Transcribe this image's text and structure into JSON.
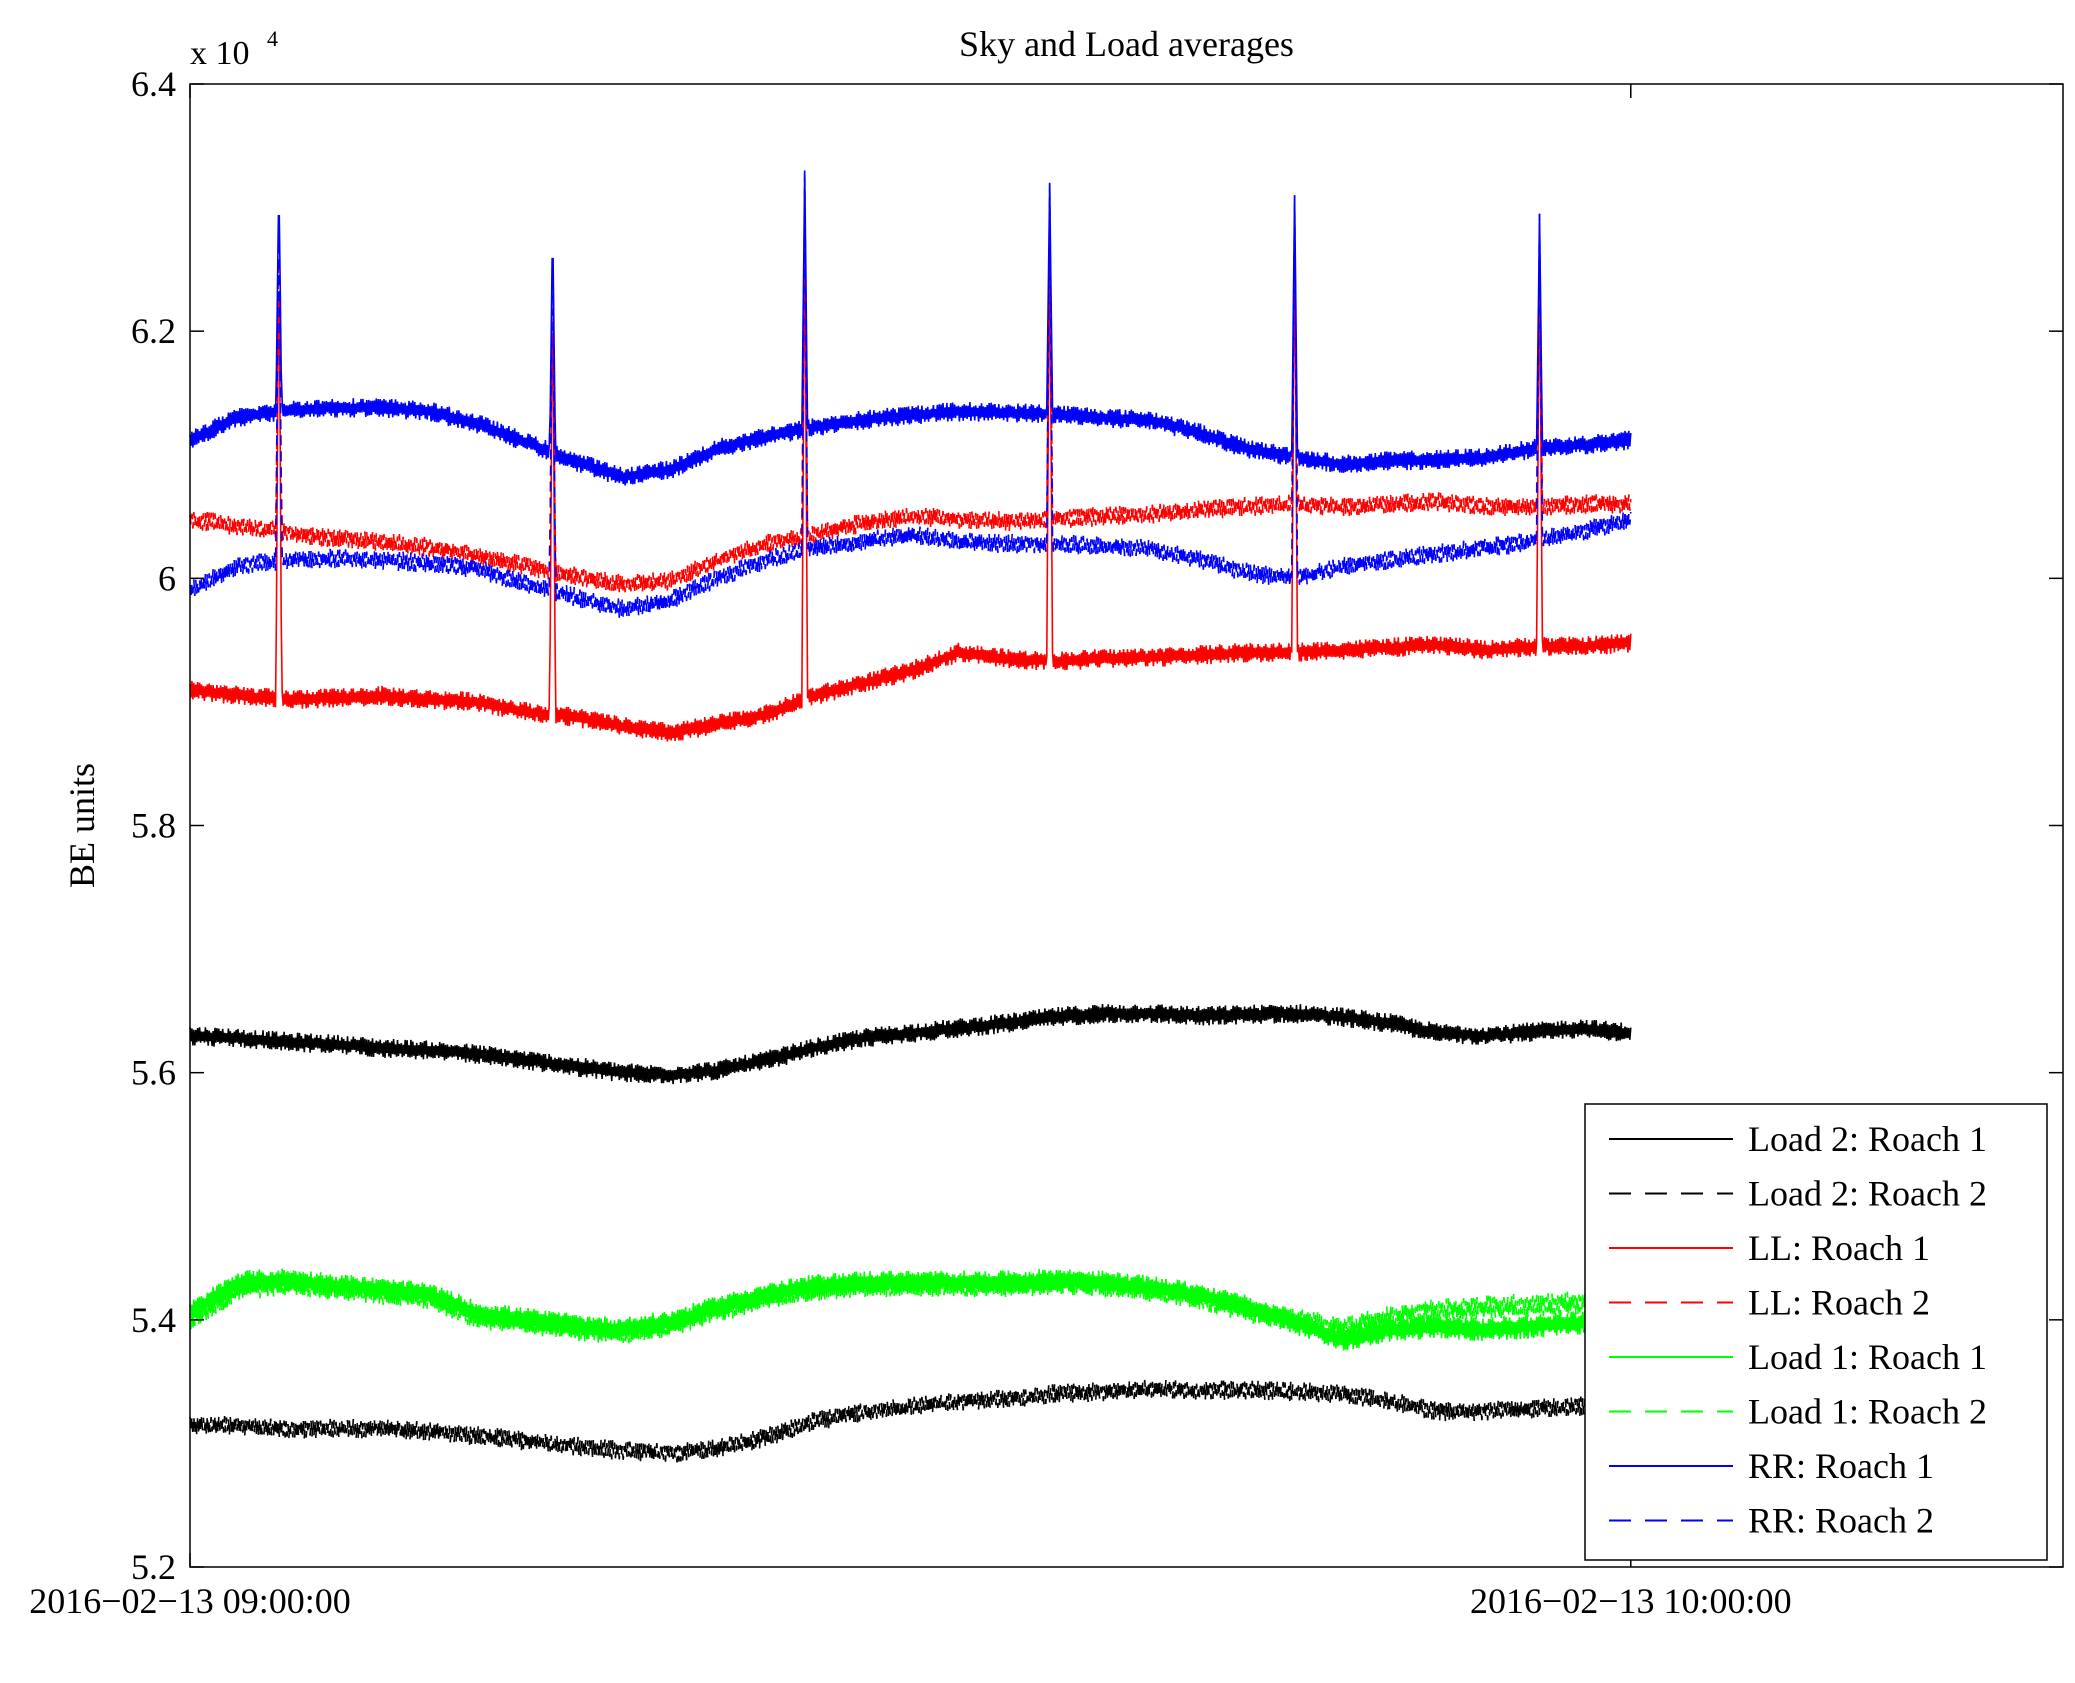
{
  "chart_data": {
    "type": "line",
    "title": "Sky and Load averages",
    "ylabel": "BE units",
    "xlabel": "",
    "y_multiplier_prefix": "x 10",
    "y_multiplier_exponent": "4",
    "x_unit": "minutes after 2016-02-13 09:00:00",
    "xlim": [
      0,
      78
    ],
    "ylim": [
      5.2,
      6.4
    ],
    "x_ticks": [
      {
        "x": 0,
        "label": "2016−02−13 09:00:00"
      },
      {
        "x": 60,
        "label": "2016−02−13 10:00:00"
      }
    ],
    "y_ticks": [
      {
        "y": 5.2,
        "label": "5.2"
      },
      {
        "y": 5.4,
        "label": "5.4"
      },
      {
        "y": 5.6,
        "label": "5.6"
      },
      {
        "y": 5.8,
        "label": "5.8"
      },
      {
        "y": 6.0,
        "label": "6"
      },
      {
        "y": 6.2,
        "label": "6.2"
      },
      {
        "y": 6.4,
        "label": "6.4"
      }
    ],
    "grid": false,
    "legend_position": "bottom-right",
    "series": [
      {
        "name": "Load 2: Roach 1",
        "color": "#000000",
        "dash": "solid",
        "x": [
          0,
          2,
          4,
          6,
          8,
          10,
          12,
          14,
          16,
          18,
          20,
          22,
          24,
          26,
          28,
          30,
          32,
          34,
          36,
          38,
          40,
          42,
          44,
          46,
          48,
          50,
          52,
          54,
          56,
          58,
          60
        ],
        "y": [
          5.63,
          5.628,
          5.625,
          5.623,
          5.62,
          5.618,
          5.615,
          5.61,
          5.605,
          5.6,
          5.598,
          5.602,
          5.61,
          5.62,
          5.628,
          5.632,
          5.636,
          5.64,
          5.645,
          5.648,
          5.648,
          5.646,
          5.647,
          5.648,
          5.645,
          5.64,
          5.632,
          5.63,
          5.633,
          5.636,
          5.632
        ]
      },
      {
        "name": "Load 2: Roach 2",
        "color": "#000000",
        "dash": "dashed",
        "x": [
          0,
          2,
          4,
          6,
          8,
          10,
          12,
          14,
          16,
          18,
          20,
          22,
          24,
          26,
          28,
          30,
          32,
          34,
          36,
          38,
          40,
          42,
          44,
          46,
          48,
          50,
          52,
          54,
          56,
          58,
          60
        ],
        "y": [
          5.315,
          5.314,
          5.312,
          5.312,
          5.312,
          5.31,
          5.306,
          5.302,
          5.298,
          5.294,
          5.292,
          5.296,
          5.305,
          5.318,
          5.325,
          5.33,
          5.334,
          5.336,
          5.34,
          5.342,
          5.344,
          5.343,
          5.343,
          5.342,
          5.34,
          5.334,
          5.326,
          5.326,
          5.328,
          5.33,
          5.33
        ]
      },
      {
        "name": "LL: Roach 1",
        "color": "#ff0000",
        "dash": "solid",
        "x": [
          0,
          2,
          4,
          6,
          8,
          10,
          12,
          14,
          16,
          18,
          20,
          22,
          24,
          26,
          28,
          30,
          32,
          34,
          36,
          38,
          40,
          42,
          44,
          46,
          48,
          50,
          52,
          54,
          56,
          58,
          60
        ],
        "y": [
          5.91,
          5.905,
          5.902,
          5.903,
          5.905,
          5.902,
          5.9,
          5.892,
          5.888,
          5.88,
          5.875,
          5.882,
          5.89,
          5.905,
          5.915,
          5.925,
          5.94,
          5.935,
          5.933,
          5.935,
          5.936,
          5.938,
          5.94,
          5.94,
          5.942,
          5.944,
          5.946,
          5.942,
          5.945,
          5.945,
          5.948
        ]
      },
      {
        "name": "LL: Roach 2",
        "color": "#ff0000",
        "dash": "dashed",
        "x": [
          0,
          2,
          4,
          6,
          8,
          10,
          12,
          14,
          16,
          18,
          20,
          22,
          24,
          26,
          28,
          30,
          32,
          34,
          36,
          38,
          40,
          42,
          44,
          46,
          48,
          50,
          52,
          54,
          56,
          58,
          60
        ],
        "y": [
          6.048,
          6.042,
          6.038,
          6.032,
          6.03,
          6.025,
          6.018,
          6.01,
          6.002,
          5.995,
          5.998,
          6.015,
          6.028,
          6.035,
          6.045,
          6.05,
          6.048,
          6.046,
          6.048,
          6.05,
          6.052,
          6.055,
          6.058,
          6.06,
          6.058,
          6.06,
          6.062,
          6.058,
          6.058,
          6.06,
          6.06
        ]
      },
      {
        "name": "Load 1: Roach 1",
        "color": "#00ff00",
        "dash": "solid",
        "x": [
          0,
          2,
          4,
          6,
          8,
          10,
          12,
          14,
          16,
          18,
          20,
          22,
          24,
          26,
          28,
          30,
          32,
          34,
          36,
          38,
          40,
          42,
          44,
          46,
          48,
          50,
          52,
          54,
          56,
          58,
          60
        ],
        "y": [
          5.405,
          5.43,
          5.432,
          5.428,
          5.424,
          5.42,
          5.405,
          5.4,
          5.395,
          5.392,
          5.398,
          5.41,
          5.42,
          5.427,
          5.43,
          5.43,
          5.43,
          5.43,
          5.432,
          5.43,
          5.426,
          5.42,
          5.41,
          5.398,
          5.384,
          5.392,
          5.395,
          5.392,
          5.395,
          5.398,
          5.4
        ]
      },
      {
        "name": "Load 1: Roach 2",
        "color": "#00ff00",
        "dash": "dashed",
        "x": [
          0,
          2,
          4,
          6,
          8,
          10,
          12,
          14,
          16,
          18,
          20,
          22,
          24,
          26,
          28,
          30,
          32,
          34,
          36,
          38,
          40,
          42,
          44,
          46,
          48,
          50,
          52,
          54,
          56,
          58,
          60
        ],
        "y": [
          5.4,
          5.425,
          5.43,
          5.426,
          5.422,
          5.418,
          5.402,
          5.398,
          5.393,
          5.39,
          5.396,
          5.408,
          5.418,
          5.425,
          5.428,
          5.428,
          5.428,
          5.428,
          5.43,
          5.428,
          5.424,
          5.418,
          5.408,
          5.4,
          5.392,
          5.402,
          5.408,
          5.41,
          5.412,
          5.414,
          5.415
        ]
      },
      {
        "name": "RR: Roach 1",
        "color": "#0000ff",
        "dash": "solid",
        "x": [
          0,
          2,
          4,
          6,
          8,
          10,
          12,
          14,
          16,
          18,
          20,
          22,
          24,
          26,
          28,
          30,
          32,
          34,
          36,
          38,
          40,
          42,
          44,
          46,
          48,
          50,
          52,
          54,
          56,
          58,
          60
        ],
        "y": [
          6.112,
          6.13,
          6.136,
          6.138,
          6.138,
          6.135,
          6.125,
          6.11,
          6.095,
          6.082,
          6.088,
          6.105,
          6.115,
          6.122,
          6.128,
          6.132,
          6.135,
          6.134,
          6.133,
          6.13,
          6.128,
          6.118,
          6.105,
          6.098,
          6.092,
          6.095,
          6.096,
          6.098,
          6.105,
          6.108,
          6.112
        ]
      },
      {
        "name": "RR: Roach 2",
        "color": "#0000ff",
        "dash": "dashed",
        "x": [
          0,
          2,
          4,
          6,
          8,
          10,
          12,
          14,
          16,
          18,
          20,
          22,
          24,
          26,
          28,
          30,
          32,
          34,
          36,
          38,
          40,
          42,
          44,
          46,
          48,
          50,
          52,
          54,
          56,
          58,
          60
        ],
        "y": [
          5.99,
          6.01,
          6.015,
          6.016,
          6.015,
          6.012,
          6.008,
          5.995,
          5.985,
          5.975,
          5.982,
          6.0,
          6.015,
          6.025,
          6.03,
          6.035,
          6.03,
          6.028,
          6.028,
          6.026,
          6.024,
          6.015,
          6.005,
          6.0,
          6.01,
          6.015,
          6.02,
          6.025,
          6.03,
          6.038,
          6.048
        ]
      }
    ],
    "spikes": [
      {
        "x": 3.7,
        "rr_peak": 6.325
      },
      {
        "x": 15.1,
        "rr_peak": 6.29
      },
      {
        "x": 25.6,
        "rr_peak": 6.33
      },
      {
        "x": 35.8,
        "rr_peak": 6.32
      },
      {
        "x": 46.0,
        "rr_peak": 6.31
      },
      {
        "x": 56.2,
        "rr_peak": 6.295
      }
    ]
  }
}
